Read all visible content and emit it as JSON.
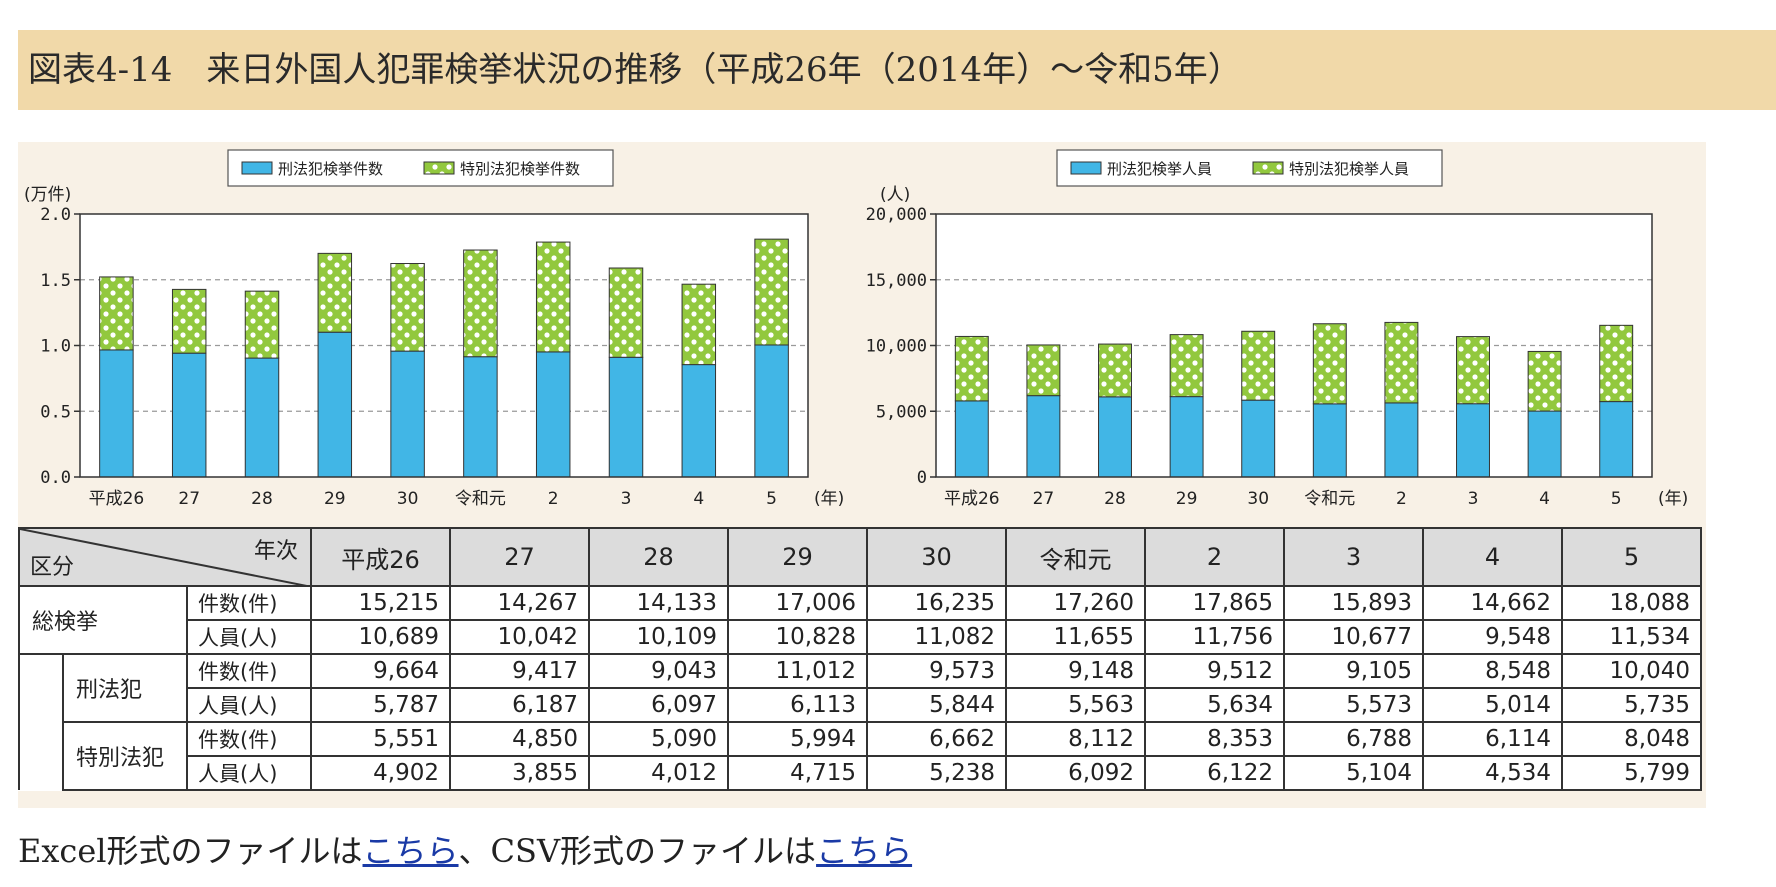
{
  "title": "図表4-14　来日外国人犯罪検挙状況の推移（平成26年（2014年）〜令和5年）",
  "colors": {
    "criminal": "#41b6e6",
    "special": "#92c83e",
    "special_dot": "#ffffff",
    "title_bg": "#f1d9a9",
    "figure_bg": "#f8f1e6"
  },
  "chart_data": [
    {
      "type": "bar",
      "stacked": true,
      "unit_label": "(万件)",
      "categories": [
        "平成26",
        "27",
        "28",
        "29",
        "30",
        "令和元",
        "2",
        "3",
        "4",
        "5"
      ],
      "x_suffix": "(年)",
      "ylim": [
        0,
        2.0
      ],
      "yticks": [
        "0.0",
        "0.5",
        "1.0",
        "1.5",
        "2.0"
      ],
      "grid": "dashed",
      "legend_position": "top",
      "series": [
        {
          "name": "刑法犯検挙件数",
          "values": [
            0.9664,
            0.9417,
            0.9043,
            1.1012,
            0.9573,
            0.9148,
            0.9512,
            0.9105,
            0.8548,
            1.004
          ]
        },
        {
          "name": "特別法犯検挙件数",
          "values": [
            0.5551,
            0.485,
            0.509,
            0.5994,
            0.6662,
            0.8112,
            0.8353,
            0.6788,
            0.6114,
            0.8048
          ]
        }
      ]
    },
    {
      "type": "bar",
      "stacked": true,
      "unit_label": "(人)",
      "categories": [
        "平成26",
        "27",
        "28",
        "29",
        "30",
        "令和元",
        "2",
        "3",
        "4",
        "5"
      ],
      "x_suffix": "(年)",
      "ylim": [
        0,
        20000
      ],
      "yticks": [
        "0",
        "5,000",
        "10,000",
        "15,000",
        "20,000"
      ],
      "grid": "dashed",
      "legend_position": "top",
      "series": [
        {
          "name": "刑法犯検挙人員",
          "values": [
            5787,
            6187,
            6097,
            6113,
            5844,
            5563,
            5634,
            5573,
            5014,
            5735
          ]
        },
        {
          "name": "特別法犯検挙人員",
          "values": [
            4902,
            3855,
            4012,
            4715,
            5238,
            6092,
            6122,
            5104,
            4534,
            5799
          ]
        }
      ]
    }
  ],
  "table": {
    "corner_top": "年次",
    "corner_bottom": "区分",
    "years": [
      "平成26",
      "27",
      "28",
      "29",
      "30",
      "令和元",
      "2",
      "3",
      "4",
      "5"
    ],
    "rows": [
      {
        "group": "総検挙",
        "label": "件数(件)",
        "values": [
          "15,215",
          "14,267",
          "14,133",
          "17,006",
          "16,235",
          "17,260",
          "17,865",
          "15,893",
          "14,662",
          "18,088"
        ]
      },
      {
        "group": "",
        "label": "人員(人)",
        "values": [
          "10,689",
          "10,042",
          "10,109",
          "10,828",
          "11,082",
          "11,655",
          "11,756",
          "10,677",
          "9,548",
          "11,534"
        ]
      },
      {
        "group": "刑法犯",
        "label": "件数(件)",
        "values": [
          "9,664",
          "9,417",
          "9,043",
          "11,012",
          "9,573",
          "9,148",
          "9,512",
          "9,105",
          "8,548",
          "10,040"
        ]
      },
      {
        "group": "",
        "label": "人員(人)",
        "values": [
          "5,787",
          "6,187",
          "6,097",
          "6,113",
          "5,844",
          "5,563",
          "5,634",
          "5,573",
          "5,014",
          "5,735"
        ]
      },
      {
        "group": "特別法犯",
        "label": "件数(件)",
        "values": [
          "5,551",
          "4,850",
          "5,090",
          "5,994",
          "6,662",
          "8,112",
          "8,353",
          "6,788",
          "6,114",
          "8,048"
        ]
      },
      {
        "group": "",
        "label": "人員(人)",
        "values": [
          "4,902",
          "3,855",
          "4,012",
          "4,715",
          "5,238",
          "6,092",
          "6,122",
          "5,104",
          "4,534",
          "5,799"
        ]
      }
    ]
  },
  "footer": {
    "prefix": "Excel形式のファイルは",
    "link1": "こちら",
    "middle": "、CSV形式のファイルは",
    "link2": "こちら"
  }
}
